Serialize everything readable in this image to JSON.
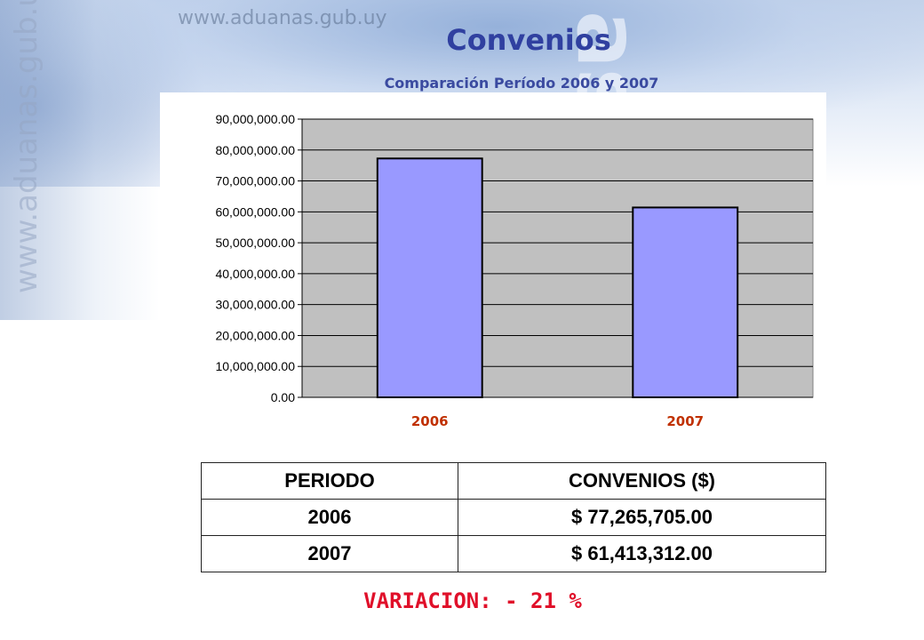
{
  "header": {
    "watermark_url": "www.aduanas.gub.uy",
    "watermark_vertical": "www.aduanas.gub.uy",
    "watermark_as": "as"
  },
  "chart_data": {
    "type": "bar",
    "title": "Convenios",
    "subtitle": "Comparación Período 2006 y 2007",
    "categories": [
      "2006",
      "2007"
    ],
    "values": [
      77265705.0,
      61413312.0
    ],
    "yticks": [
      "0.00",
      "10,000,000.00",
      "20,000,000.00",
      "30,000,000.00",
      "40,000,000.00",
      "50,000,000.00",
      "60,000,000.00",
      "70,000,000.00",
      "80,000,000.00",
      "90,000,000.00"
    ],
    "ylim": [
      0,
      90000000
    ],
    "grid": true,
    "colors": {
      "bar": "#9999ff",
      "plot_bg": "#c0c0c0",
      "bar_border": "#000000",
      "category_label": "#c03000"
    }
  },
  "table": {
    "headers": [
      "PERIODO",
      "CONVENIOS ($)"
    ],
    "rows": [
      [
        "2006",
        "$ 77,265,705.00"
      ],
      [
        "2007",
        "$ 61,413,312.00"
      ]
    ]
  },
  "footer": {
    "variacion": "VARIACION: - 21 %"
  }
}
